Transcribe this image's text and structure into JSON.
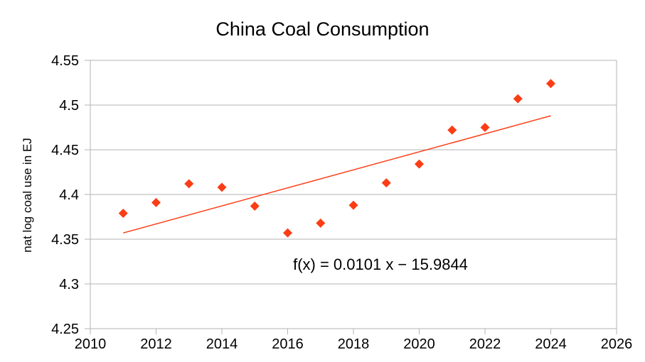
{
  "chart_data": {
    "type": "scatter",
    "title": "China Coal Consumption",
    "ylabel": "nat log coal use in EJ",
    "xlabel": "",
    "series": [
      {
        "name": "nat log coal use",
        "marker": "diamond",
        "color": "#fb3d16",
        "x": [
          2011,
          2012,
          2013,
          2014,
          2015,
          2016,
          2017,
          2018,
          2019,
          2020,
          2021,
          2022,
          2023,
          2024
        ],
        "y": [
          4.379,
          4.391,
          4.412,
          4.408,
          4.387,
          4.357,
          4.368,
          4.388,
          4.413,
          4.434,
          4.472,
          4.475,
          4.507,
          4.524
        ]
      }
    ],
    "trendline": {
      "equation": "f(x) = 0.0101 x − 15.9844",
      "slope": 0.0101,
      "intercept": -15.9844,
      "x_start": 2011,
      "y_start": 4.357,
      "x_end": 2024,
      "y_end": 4.488,
      "color": "#fb3d16"
    },
    "xlim": [
      2010,
      2026
    ],
    "ylim": [
      4.25,
      4.55
    ],
    "xticks": [
      2010,
      2012,
      2014,
      2016,
      2018,
      2020,
      2022,
      2024,
      2026
    ],
    "yticks": [
      4.55,
      4.5,
      4.45,
      4.4,
      4.35,
      4.3,
      4.25
    ],
    "ytick_labels": [
      "4.55",
      "4.5",
      "4.45",
      "4.4",
      "4.35",
      "4.3",
      "4.25"
    ],
    "grid": "horizontal",
    "legend": "none",
    "colors": {
      "series": "#fb3d16",
      "grid": "#b3b3b3",
      "text": "#000000",
      "background": "#ffffff"
    }
  }
}
